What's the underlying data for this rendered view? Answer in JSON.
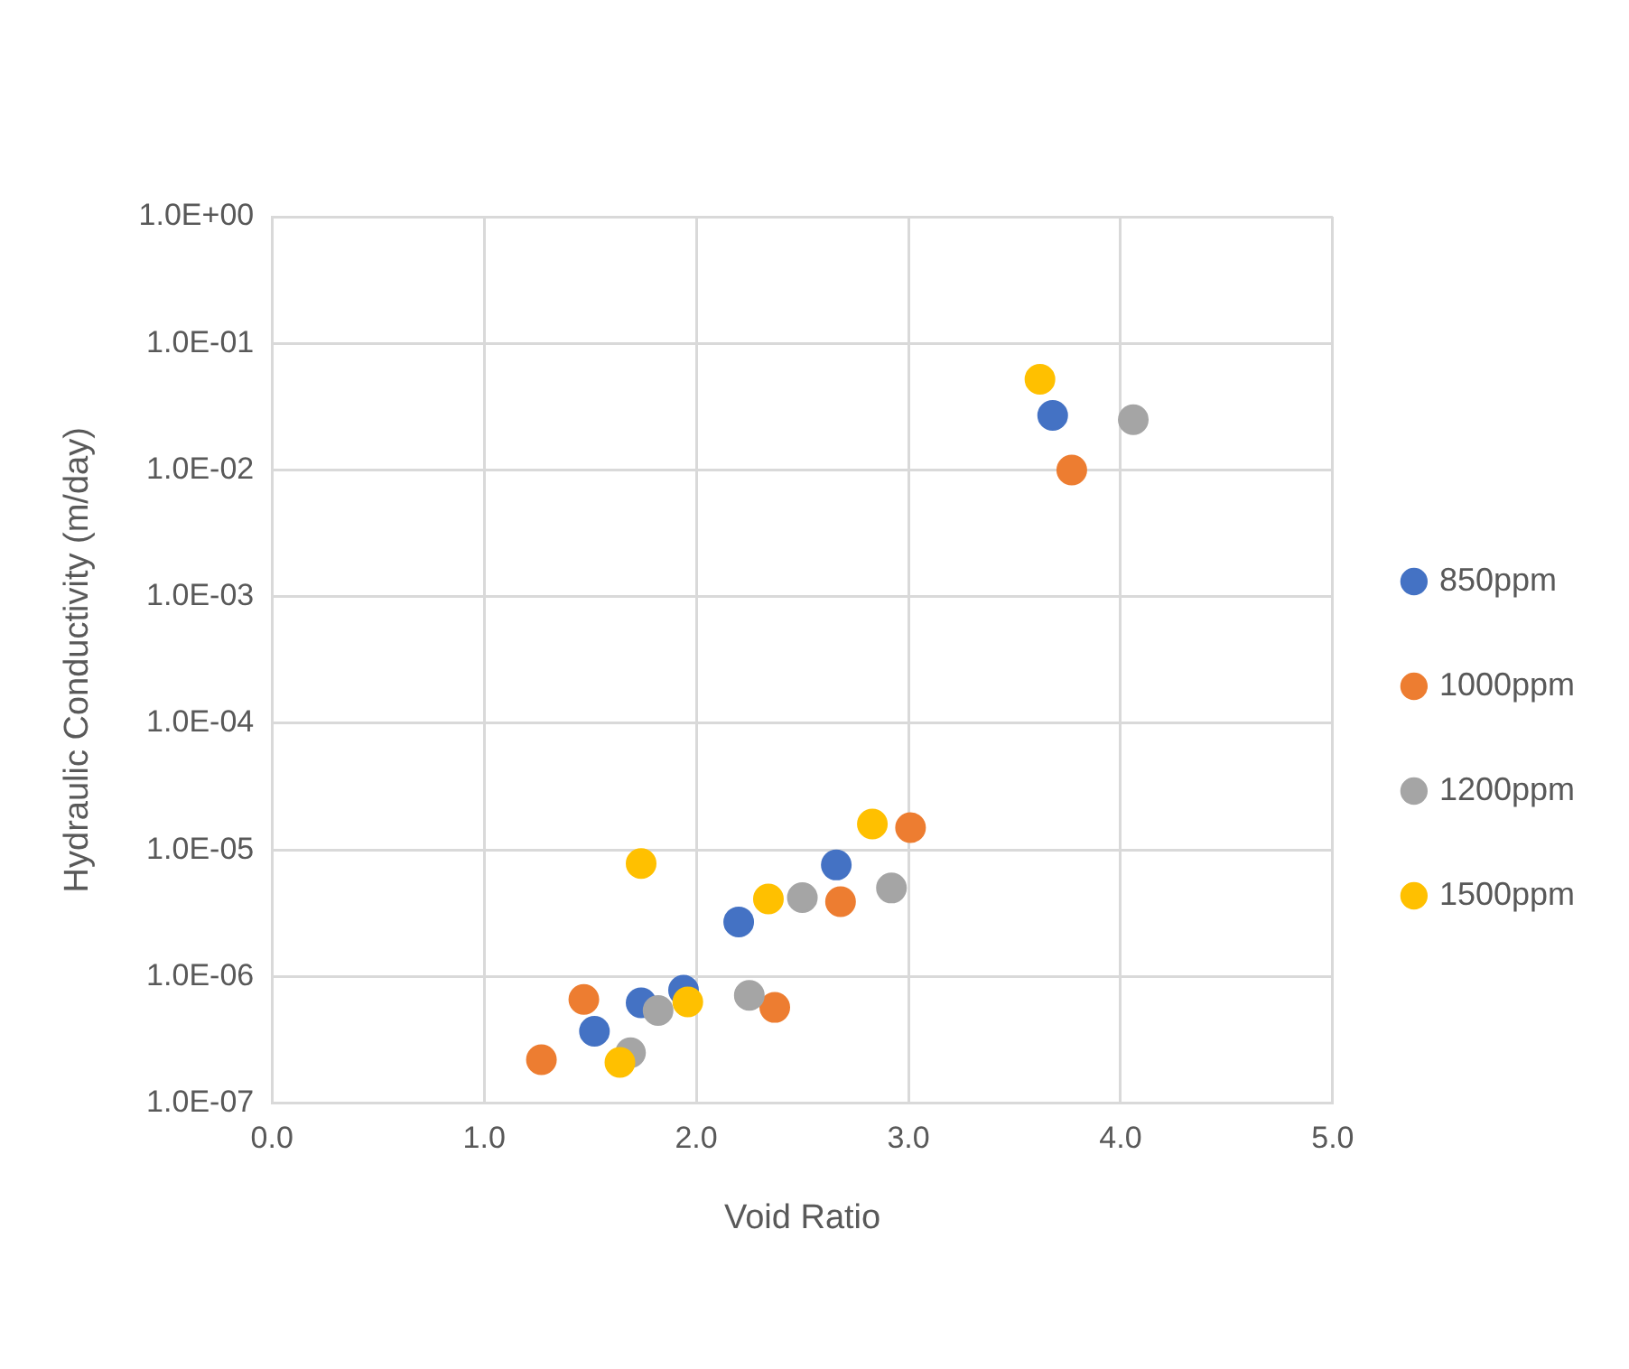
{
  "chart_data": {
    "type": "scatter",
    "xlabel": "Void Ratio",
    "ylabel": "Hydraulic Conductivity (m/day)",
    "log": "y",
    "grid": true,
    "legend": "right",
    "marker": "circle",
    "xlim": [
      0,
      5
    ],
    "xticks": [
      {
        "value": 0,
        "label": "0.0"
      },
      {
        "value": 1,
        "label": "1.0"
      },
      {
        "value": 2,
        "label": "2.0"
      },
      {
        "value": 3,
        "label": "3.0"
      },
      {
        "value": 4,
        "label": "4.0"
      },
      {
        "value": 5,
        "label": "5.0"
      }
    ],
    "ylim": [
      1e-07,
      1
    ],
    "yticks": [
      {
        "value": 1e-07,
        "label": "1.0E-07"
      },
      {
        "value": 1e-06,
        "label": "1.0E-06"
      },
      {
        "value": 1e-05,
        "label": "1.0E-05"
      },
      {
        "value": 0.0001,
        "label": "1.0E-04"
      },
      {
        "value": 0.001,
        "label": "1.0E-03"
      },
      {
        "value": 0.01,
        "label": "1.0E-02"
      },
      {
        "value": 0.1,
        "label": "1.0E-01"
      },
      {
        "value": 1,
        "label": "1.0E+00"
      }
    ],
    "series": [
      {
        "name": "850ppm",
        "color": "#4472c4",
        "x": [
          1.52,
          1.74,
          1.94,
          2.2,
          2.66,
          3.68
        ],
        "values": [
          3.7e-07,
          6.2e-07,
          7.8e-07,
          2.7e-06,
          7.6e-06,
          0.027
        ]
      },
      {
        "name": "1000ppm",
        "color": "#ed7d31",
        "x": [
          1.27,
          1.47,
          2.37,
          2.68,
          3.01,
          3.77
        ],
        "values": [
          2.2e-07,
          6.6e-07,
          5.7e-07,
          3.9e-06,
          1.5e-05,
          0.01
        ]
      },
      {
        "name": "1200ppm",
        "color": "#a5a5a5",
        "x": [
          1.69,
          1.82,
          2.25,
          2.5,
          2.92,
          4.06
        ],
        "values": [
          2.5e-07,
          5.4e-07,
          7.1e-07,
          4.2e-06,
          5e-06,
          0.025
        ]
      },
      {
        "name": "1500ppm",
        "color": "#ffc000",
        "x": [
          1.64,
          1.74,
          1.96,
          2.34,
          2.83,
          3.62
        ],
        "values": [
          2.1e-07,
          7.8e-06,
          6.3e-07,
          4.1e-06,
          1.6e-05,
          0.052
        ]
      }
    ]
  }
}
